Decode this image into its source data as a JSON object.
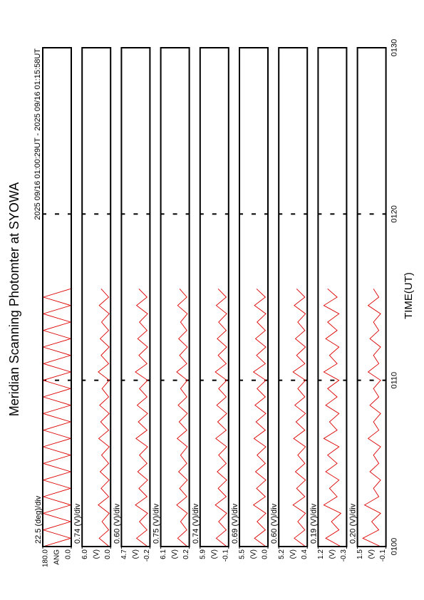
{
  "chart_data": {
    "type": "line",
    "title": "Meridian Scanning Photomter at SYOWA",
    "subtitle": "2025 09/16 01:00:29UT - 2025 09/16 01:15:58UT",
    "xlabel": "TIME(UT)",
    "xlim": [
      60,
      90
    ],
    "xticks": [
      {
        "value": 60,
        "label": "0100"
      },
      {
        "value": 70,
        "label": "0110"
      },
      {
        "value": 80,
        "label": "0120"
      },
      {
        "value": 90,
        "label": "0130"
      }
    ],
    "grid": true,
    "x": [
      60,
      60.5,
      61,
      61.5,
      62,
      62.5,
      63,
      63.5,
      64,
      64.5,
      65,
      65.5,
      66,
      66.5,
      67,
      67.5,
      68,
      68.5,
      69,
      69.5,
      70,
      70.5,
      71,
      71.5,
      72,
      72.5,
      73,
      73.5,
      74,
      74.5,
      75,
      75.5
    ],
    "panels": [
      {
        "scale_label": "22.5 (deg)/div",
        "unit": "ANG",
        "ylim": [
          0,
          180
        ],
        "yticks": [
          {
            "value": 0,
            "label": "0.0"
          },
          {
            "value": 180,
            "label": "180.0"
          }
        ],
        "series": [
          {
            "color": "#dd0000",
            "values": [
              178,
              3,
              177,
              4,
              178,
              3,
              176,
              4,
              178,
              3,
              177,
              4,
              178,
              3,
              176,
              4,
              178,
              3,
              177,
              4,
              178,
              3,
              176,
              4,
              178,
              3,
              177,
              4,
              178,
              3,
              176,
              4
            ]
          }
        ]
      },
      {
        "scale_label": "0.74 (V)/div",
        "unit": "(V)",
        "ylim": [
          0,
          6
        ],
        "yticks": [
          {
            "value": 0,
            "label": "0.0"
          },
          {
            "value": 6,
            "label": "6.0"
          }
        ],
        "series": [
          {
            "color": "#dd0000",
            "values": [
              0.3,
              2.4,
              0.4,
              1.8,
              0.3,
              2.6,
              0.4,
              2.0,
              0.3,
              2.2,
              0.4,
              1.9,
              0.3,
              2.5,
              0.4,
              2.1,
              0.3,
              2.3,
              0.4,
              1.8,
              0.3,
              2.6,
              0.4,
              2.0,
              0.3,
              2.2,
              0.4,
              1.9,
              0.3,
              2.4,
              0.4,
              2.0
            ]
          }
        ]
      },
      {
        "scale_label": "0.60 (V)/div",
        "unit": "(V)",
        "ylim": [
          -0.2,
          4.7
        ],
        "yticks": [
          {
            "value": -0.2,
            "label": "-0.2"
          },
          {
            "value": 4.7,
            "label": "4.7"
          }
        ],
        "series": [
          {
            "color": "#dd0000",
            "values": [
              0.2,
              2.1,
              0.3,
              1.6,
              0.2,
              2.3,
              0.3,
              1.7,
              0.2,
              1.9,
              0.3,
              1.6,
              0.2,
              2.2,
              0.3,
              1.8,
              0.2,
              2.0,
              0.3,
              1.6,
              0.2,
              2.3,
              0.3,
              1.7,
              0.2,
              1.9,
              0.3,
              1.6,
              0.2,
              2.1,
              0.3,
              1.7
            ]
          }
        ]
      },
      {
        "scale_label": "0.75 (V)/div",
        "unit": "(V)",
        "ylim": [
          0.2,
          6.1
        ],
        "yticks": [
          {
            "value": 0.2,
            "label": "0.2"
          },
          {
            "value": 6.1,
            "label": "6.1"
          }
        ],
        "series": [
          {
            "color": "#dd0000",
            "values": [
              0.6,
              2.6,
              0.7,
              2.0,
              0.6,
              2.8,
              0.7,
              2.2,
              0.6,
              2.4,
              0.7,
              2.0,
              0.6,
              2.7,
              0.7,
              2.3,
              0.6,
              2.5,
              0.7,
              2.0,
              0.6,
              2.8,
              0.7,
              2.2,
              0.6,
              2.4,
              0.7,
              2.0,
              0.6,
              2.6,
              0.7,
              2.2
            ]
          }
        ]
      },
      {
        "scale_label": "0.74 (V)/div",
        "unit": "(V)",
        "ylim": [
          -0.1,
          5.9
        ],
        "yticks": [
          {
            "value": -0.1,
            "label": "-0.1"
          },
          {
            "value": 5.9,
            "label": "5.9"
          }
        ],
        "series": [
          {
            "color": "#dd0000",
            "values": [
              0.3,
              2.5,
              0.4,
              2.0,
              0.3,
              2.7,
              0.4,
              2.1,
              0.3,
              2.3,
              0.4,
              2.0,
              0.3,
              2.6,
              0.4,
              2.2,
              0.3,
              2.4,
              0.4,
              2.0,
              0.3,
              2.7,
              0.4,
              2.1,
              0.3,
              2.3,
              0.4,
              2.0,
              0.3,
              2.5,
              0.4,
              2.1
            ]
          }
        ]
      },
      {
        "scale_label": "0.69 (V)/div",
        "unit": "(V)",
        "ylim": [
          0,
          5.5
        ],
        "yticks": [
          {
            "value": 0,
            "label": "0.0"
          },
          {
            "value": 5.5,
            "label": "5.5"
          }
        ],
        "series": [
          {
            "color": "#dd0000",
            "values": [
              0.4,
              2.6,
              0.5,
              2.1,
              0.4,
              2.8,
              0.5,
              2.2,
              0.4,
              2.4,
              0.5,
              2.1,
              0.4,
              2.7,
              0.5,
              2.3,
              0.4,
              2.5,
              0.5,
              2.1,
              0.4,
              2.8,
              0.5,
              2.2,
              0.4,
              2.4,
              0.5,
              2.1,
              0.4,
              2.6,
              0.5,
              2.2
            ]
          }
        ]
      },
      {
        "scale_label": "0.60 (V)/div",
        "unit": "(V)",
        "ylim": [
          0.4,
          5.2
        ],
        "yticks": [
          {
            "value": 0.4,
            "label": "0.4"
          },
          {
            "value": 5.2,
            "label": "5.2"
          }
        ],
        "series": [
          {
            "color": "#dd0000",
            "values": [
              0.7,
              2.6,
              0.8,
              2.0,
              0.7,
              2.8,
              0.8,
              2.2,
              0.7,
              2.4,
              0.8,
              2.0,
              0.7,
              2.7,
              0.8,
              2.3,
              0.7,
              2.5,
              0.8,
              2.0,
              0.7,
              2.8,
              0.8,
              2.2,
              0.7,
              2.4,
              0.8,
              2.0,
              0.7,
              2.6,
              0.8,
              2.2
            ]
          }
        ]
      },
      {
        "scale_label": "0.19 (V)/div",
        "unit": "(V)",
        "ylim": [
          -0.3,
          1.2
        ],
        "yticks": [
          {
            "value": -0.3,
            "label": "-0.3"
          },
          {
            "value": 1.2,
            "label": "1.2"
          }
        ],
        "series": [
          {
            "color": "#dd0000",
            "values": [
              0.0,
              0.8,
              0.1,
              0.5,
              0.0,
              0.9,
              0.2,
              0.6,
              0.1,
              0.8,
              0.2,
              0.7,
              0.1,
              0.9,
              0.2,
              0.6,
              0.1,
              0.8,
              0.2,
              0.7,
              0.1,
              0.9,
              0.2,
              0.6,
              0.1,
              0.8,
              0.2,
              0.7,
              0.1,
              0.9,
              0.2,
              0.7
            ]
          }
        ]
      },
      {
        "scale_label": "0.20 (V)/div",
        "unit": "(V)",
        "ylim": [
          -0.1,
          1.5
        ],
        "yticks": [
          {
            "value": -0.1,
            "label": "-0.1"
          },
          {
            "value": 1.5,
            "label": "1.5"
          }
        ],
        "series": [
          {
            "color": "#dd0000",
            "values": [
              0.2,
              1.2,
              0.3,
              0.7,
              0.2,
              1.1,
              0.3,
              0.6,
              0.2,
              0.8,
              0.3,
              0.6,
              0.2,
              0.9,
              0.3,
              0.6,
              0.2,
              0.8,
              0.3,
              0.6,
              0.2,
              0.9,
              0.3,
              0.6,
              0.2,
              0.8,
              0.3,
              0.6,
              0.2,
              0.9,
              0.3,
              0.6
            ]
          }
        ]
      }
    ]
  }
}
